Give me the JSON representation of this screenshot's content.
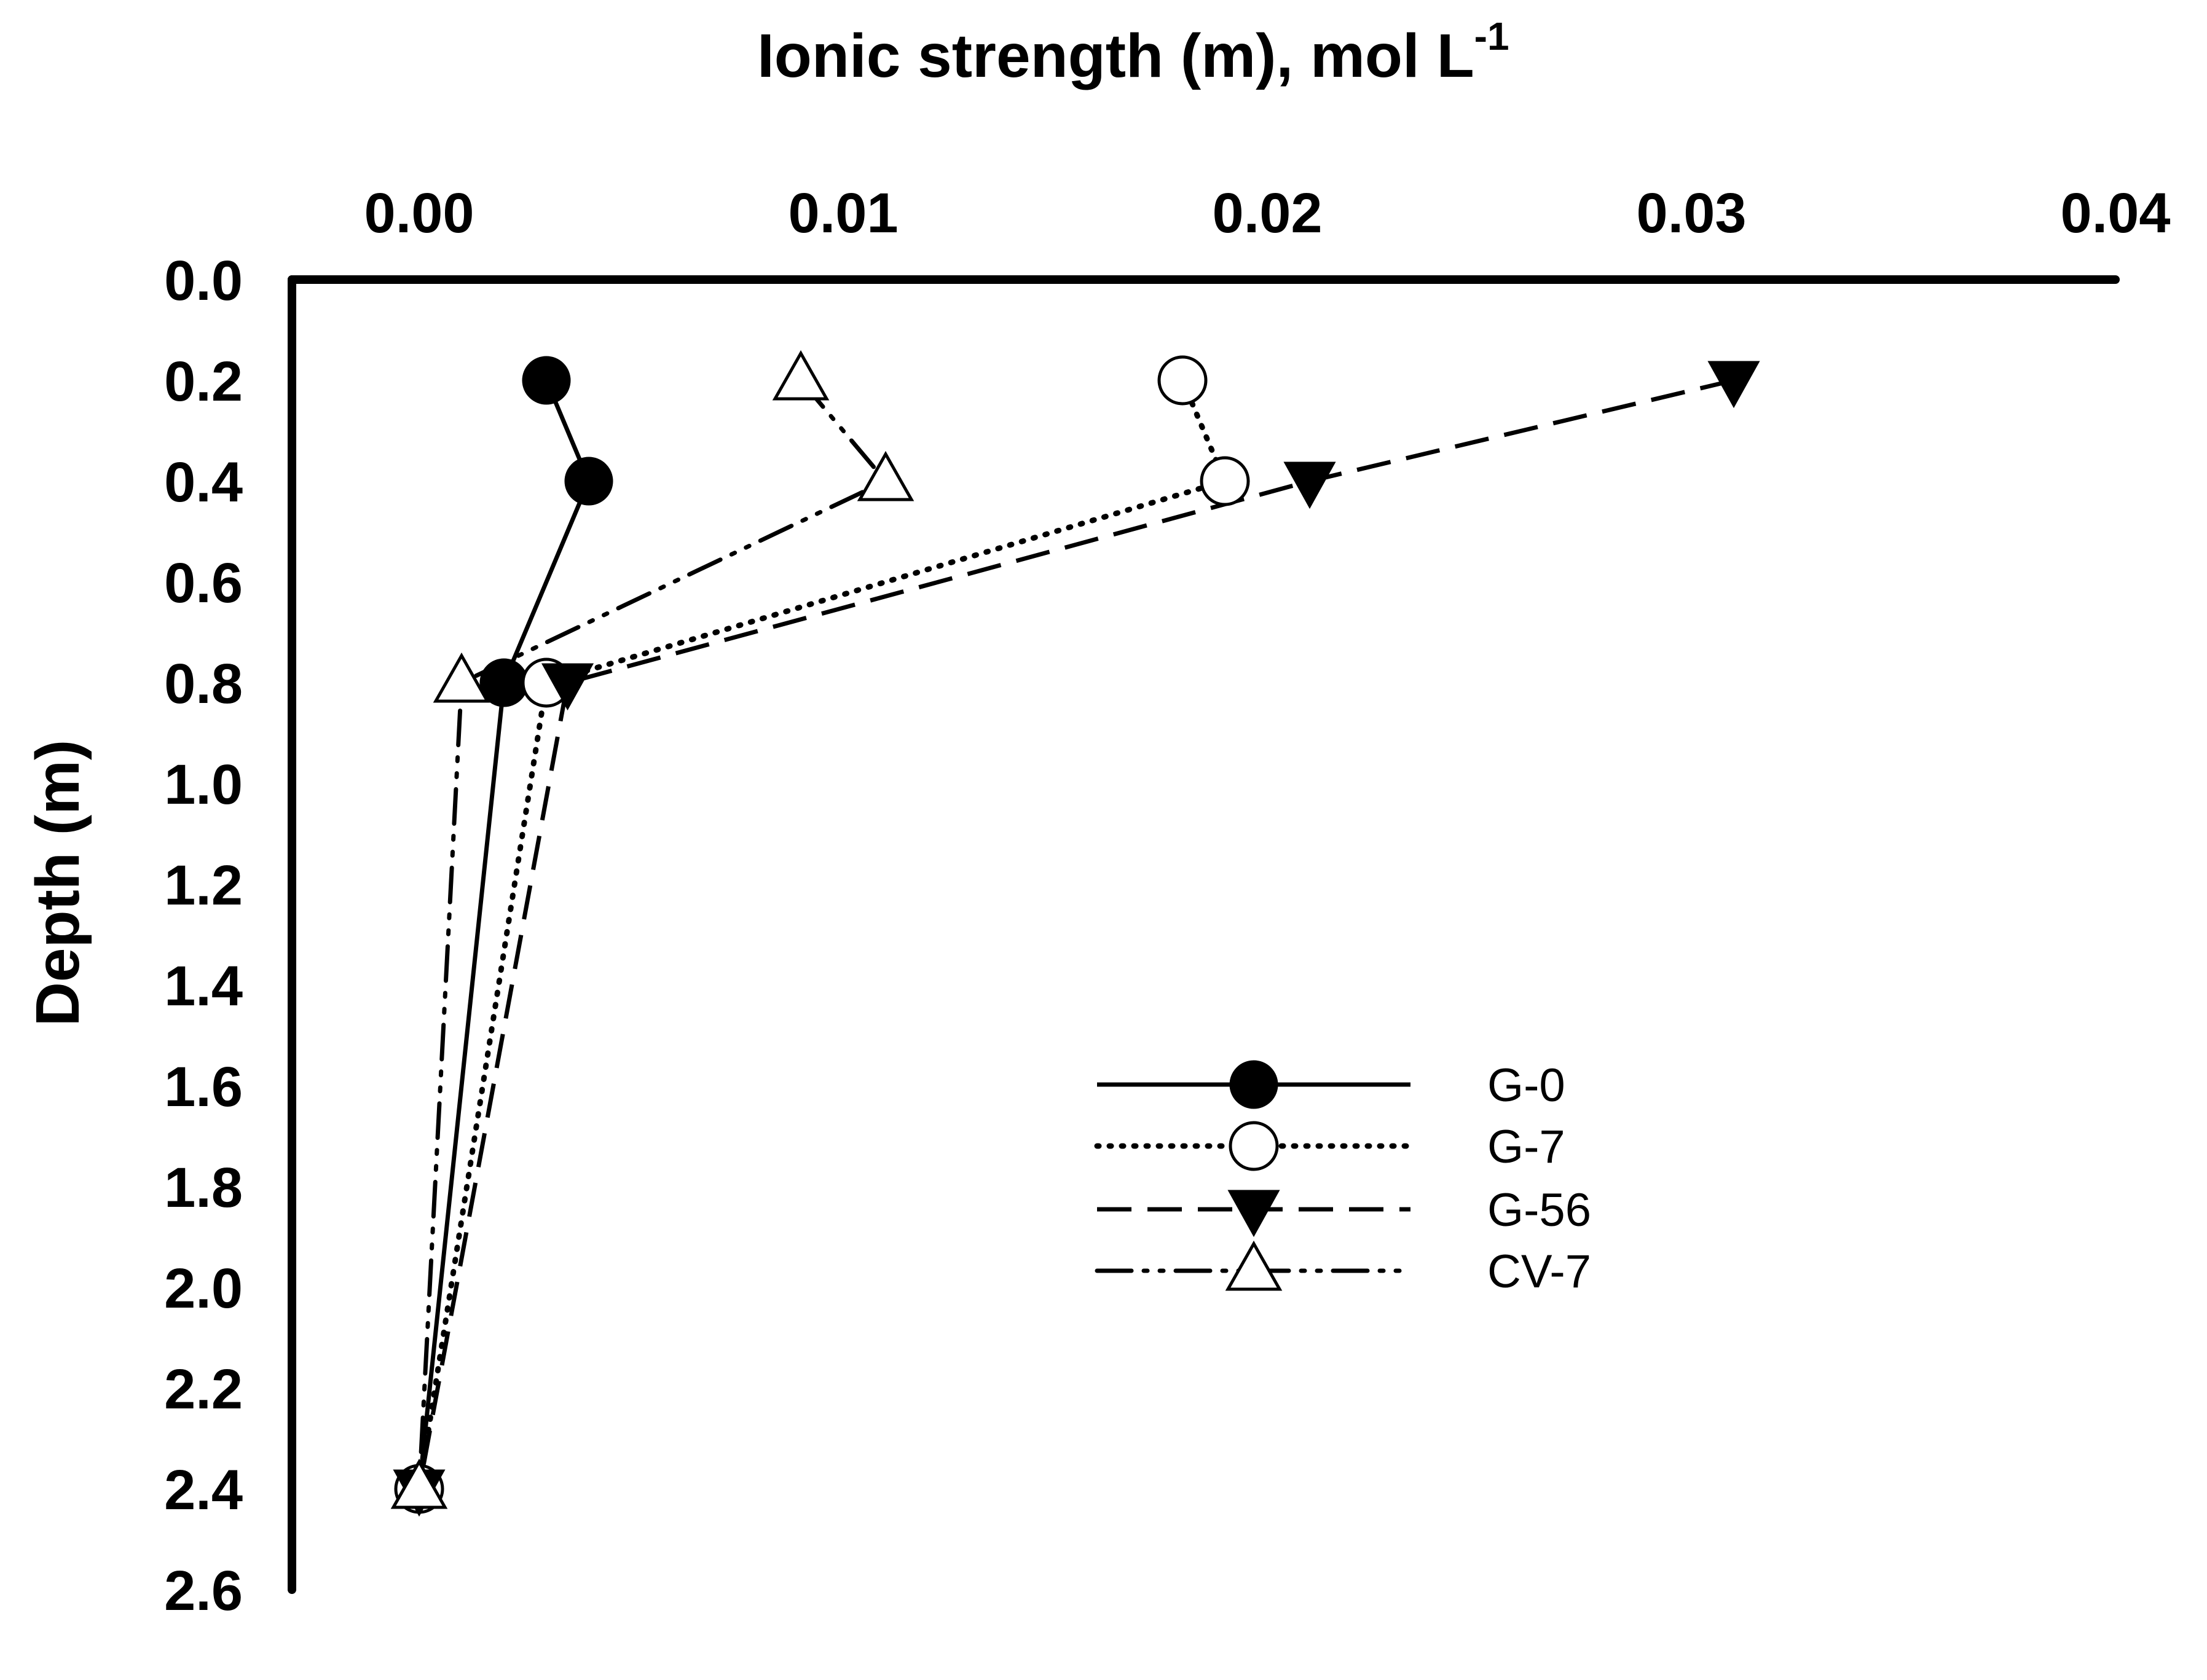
{
  "chart_data": {
    "type": "line",
    "title": "",
    "xlabel": "Ionic strength (m),  mol L",
    "xlabel_superscript": "-1",
    "ylabel": "Depth (m)",
    "x_axis_position": "top",
    "y_axis_inverted": true,
    "xlim": [
      -0.003,
      0.04
    ],
    "ylim": [
      0,
      2.6
    ],
    "x_ticks": [
      0.0,
      0.01,
      0.02,
      0.03,
      0.04
    ],
    "x_tick_labels": [
      "0.00",
      "0.01",
      "0.02",
      "0.03",
      "0.04"
    ],
    "y_ticks": [
      0.0,
      0.2,
      0.4,
      0.6,
      0.8,
      1.0,
      1.2,
      1.4,
      1.6,
      1.8,
      2.0,
      2.2,
      2.4,
      2.6
    ],
    "y_tick_labels": [
      "0.0",
      "0.2",
      "0.4",
      "0.6",
      "0.8",
      "1.0",
      "1.2",
      "1.4",
      "1.6",
      "1.8",
      "2.0",
      "2.2",
      "2.4",
      "2.6"
    ],
    "grid": false,
    "legend_position": "lower-center-right",
    "series": [
      {
        "name": "G-0",
        "line_style": "solid",
        "marker": "filled-circle",
        "points": [
          {
            "x": 0.003,
            "y": 0.2
          },
          {
            "x": 0.004,
            "y": 0.4
          },
          {
            "x": 0.002,
            "y": 0.8
          },
          {
            "x": 0.0,
            "y": 2.4
          }
        ]
      },
      {
        "name": "G-7",
        "line_style": "dotted",
        "marker": "open-circle",
        "points": [
          {
            "x": 0.018,
            "y": 0.2
          },
          {
            "x": 0.019,
            "y": 0.4
          },
          {
            "x": 0.003,
            "y": 0.8
          },
          {
            "x": 0.0,
            "y": 2.4
          }
        ]
      },
      {
        "name": "G-56",
        "line_style": "dashed",
        "marker": "filled-triangle-down",
        "points": [
          {
            "x": 0.031,
            "y": 0.2
          },
          {
            "x": 0.021,
            "y": 0.4
          },
          {
            "x": 0.0035,
            "y": 0.8
          },
          {
            "x": 0.0,
            "y": 2.4
          }
        ]
      },
      {
        "name": "CV-7",
        "line_style": "dash-dot-dot",
        "marker": "open-triangle-up",
        "points": [
          {
            "x": 0.009,
            "y": 0.2
          },
          {
            "x": 0.011,
            "y": 0.4
          },
          {
            "x": 0.001,
            "y": 0.8
          },
          {
            "x": 0.0,
            "y": 2.4
          }
        ]
      }
    ],
    "colors": {
      "line": "#000000",
      "open_marker_fill": "#ffffff",
      "background": "#ffffff"
    }
  }
}
